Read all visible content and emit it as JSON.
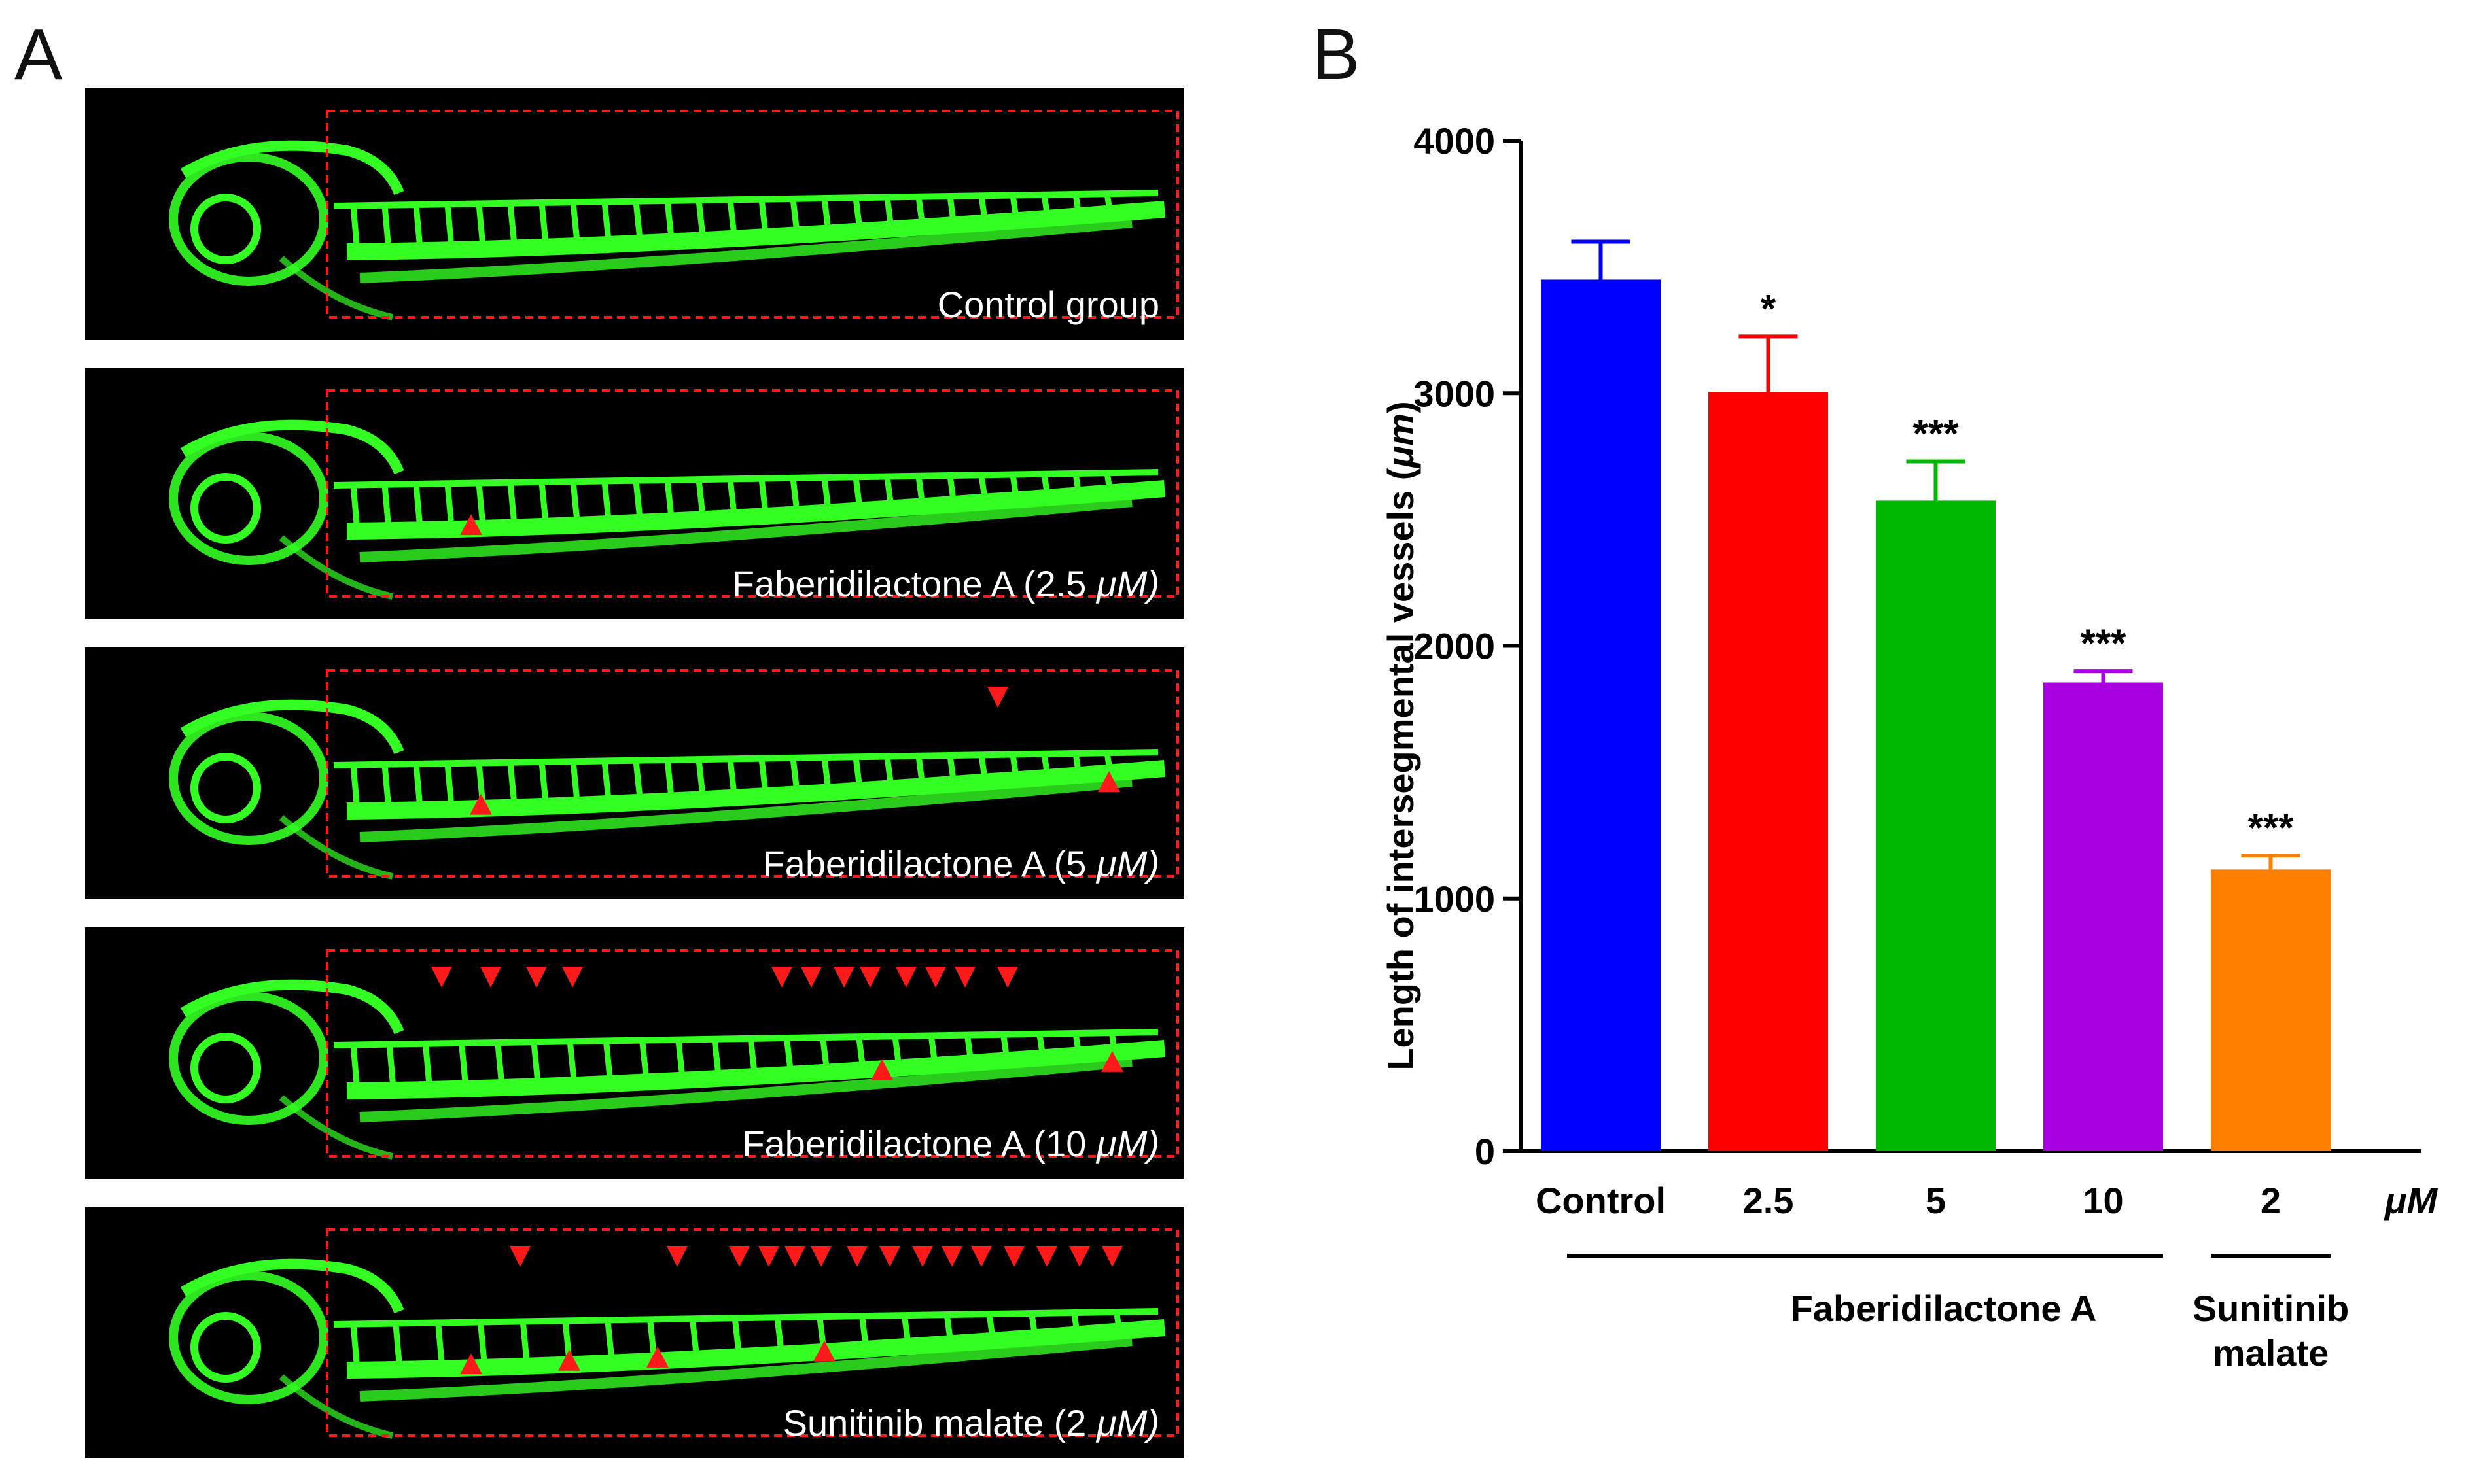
{
  "panel_a": {
    "letter": "A",
    "panels": [
      {
        "label": "Control group",
        "conc": ""
      },
      {
        "label": "Faberidilactone A (2.5 ",
        "conc": "μM)"
      },
      {
        "label": "Faberidilactone A (5 ",
        "conc": "μM)"
      },
      {
        "label": "Faberidilactone A (10 ",
        "conc": "μM)"
      },
      {
        "label": "Sunitinib malate (2 ",
        "conc": "μM)"
      }
    ],
    "colors": {
      "vessel": "#33ff22",
      "marker": "#ff1a1a",
      "background": "#000000"
    }
  },
  "chart_data": {
    "letter": "B",
    "type": "bar",
    "categories": [
      "Control",
      "2.5",
      "5",
      "10",
      "2"
    ],
    "values": [
      3450,
      3005,
      2575,
      1855,
      1115
    ],
    "errors": [
      150,
      220,
      155,
      45,
      55
    ],
    "colors": [
      "#0000ff",
      "#ff0000",
      "#00b800",
      "#a800e0",
      "#ff8000"
    ],
    "significance": [
      "",
      "*",
      "***",
      "***",
      "***"
    ],
    "ylabel_main": "Length of intersegmental vessels (",
    "ylabel_unit": "μm",
    "ylabel_end": ")",
    "ylim": [
      0,
      4000
    ],
    "yticks": [
      "0",
      "1000",
      "2000",
      "3000",
      "4000"
    ],
    "unit_label": "μM",
    "groups": [
      {
        "label_lines": [
          "Faberidilactone A"
        ]
      },
      {
        "label_lines": [
          "Sunitinib",
          "malate"
        ]
      }
    ]
  }
}
